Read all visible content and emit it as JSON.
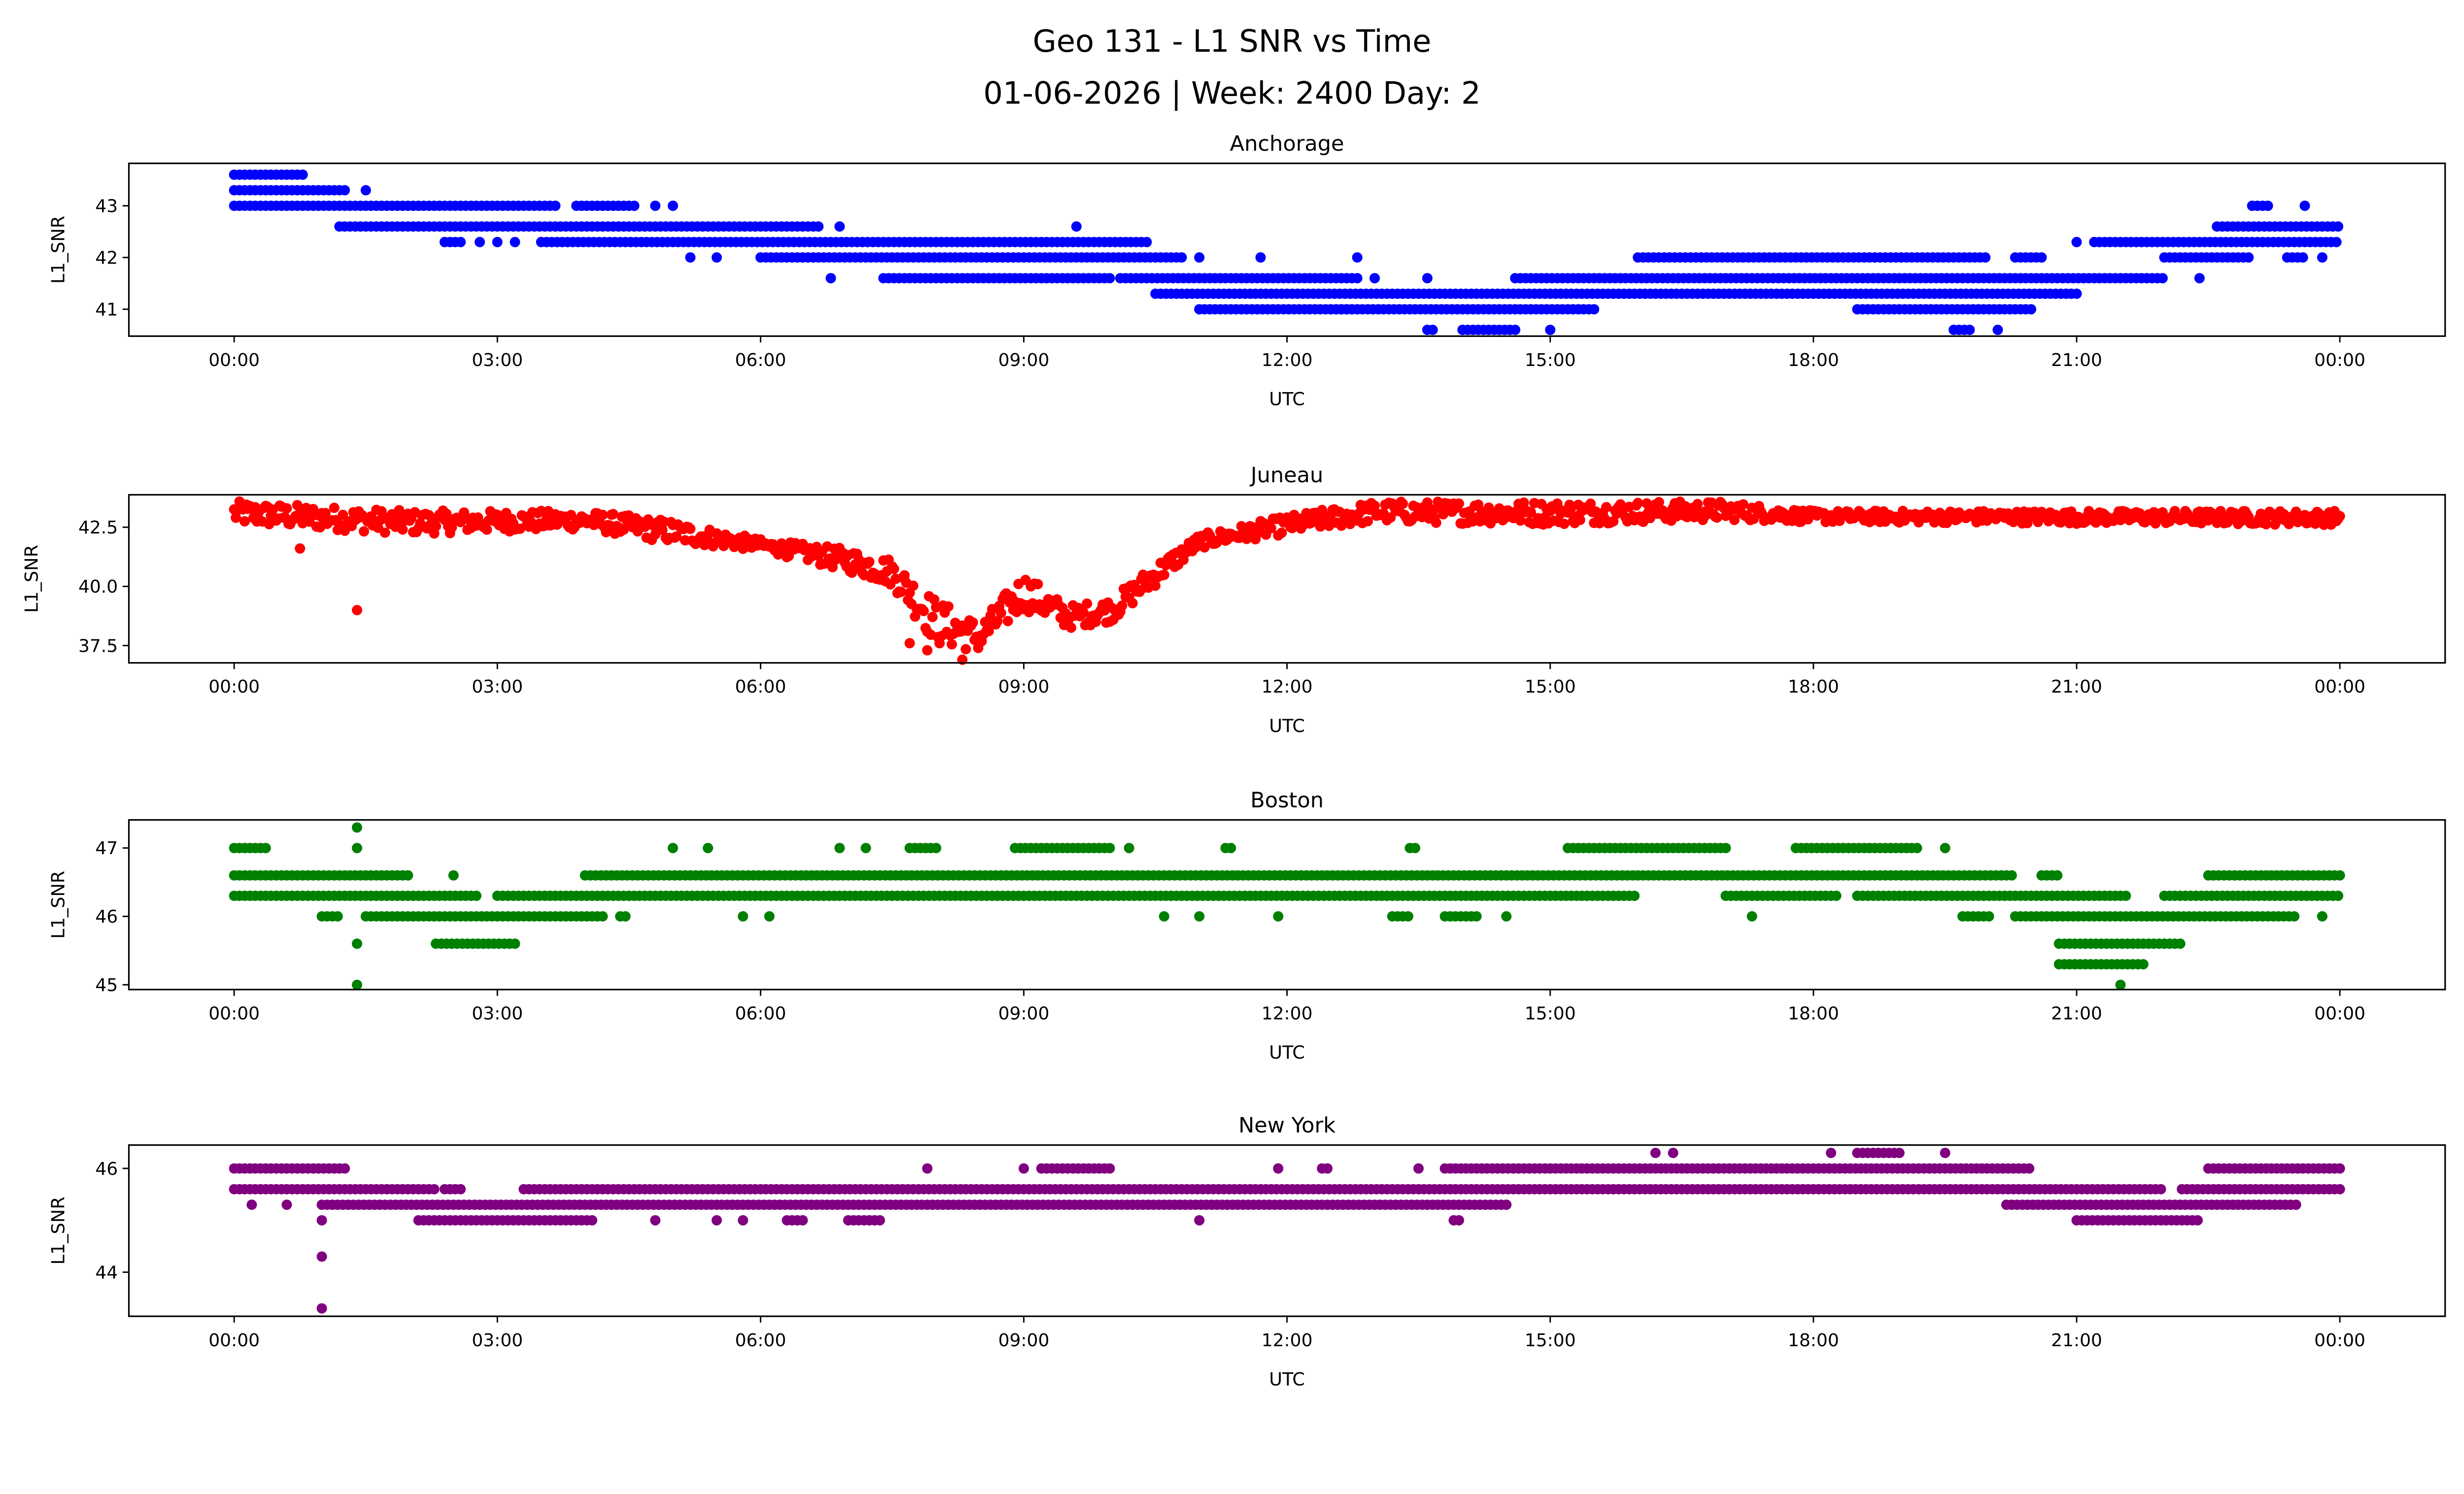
{
  "title_line1": "Geo 131 - L1 SNR vs Time",
  "title_line2": "01-06-2026 | Week: 2400 Day: 2",
  "chart_data": [
    {
      "type": "scatter",
      "title": "Anchorage",
      "xlabel": "UTC",
      "ylabel": "L1_SNR",
      "color": "#0000ff",
      "xlim_hours": [
        -1.2,
        25.2
      ],
      "ylim": [
        40.48,
        43.82
      ],
      "yticks": [
        41,
        42,
        43
      ],
      "xticks_hours": [
        0,
        3,
        6,
        9,
        12,
        15,
        18,
        21,
        24
      ],
      "xtick_labels": [
        "00:00",
        "03:00",
        "06:00",
        "09:00",
        "12:00",
        "15:00",
        "18:00",
        "21:00",
        "00:00"
      ],
      "runs": [
        [
          43.6,
          0.0,
          0.8
        ],
        [
          43.3,
          0.0,
          1.3
        ],
        [
          43.3,
          1.5,
          1.5
        ],
        [
          43.0,
          0.0,
          3.7
        ],
        [
          43.0,
          3.9,
          4.6
        ],
        [
          43.0,
          4.8,
          4.8
        ],
        [
          43.0,
          5.0,
          5.0
        ],
        [
          42.6,
          1.2,
          6.7
        ],
        [
          42.6,
          6.9,
          6.9
        ],
        [
          42.3,
          2.4,
          2.6
        ],
        [
          42.3,
          2.8,
          2.8
        ],
        [
          42.3,
          3.0,
          3.0
        ],
        [
          42.3,
          3.2,
          3.2
        ],
        [
          42.3,
          3.5,
          10.4
        ],
        [
          42.0,
          5.2,
          5.2
        ],
        [
          42.0,
          5.5,
          5.5
        ],
        [
          42.0,
          6.0,
          10.8
        ],
        [
          42.0,
          11.0,
          11.0
        ],
        [
          42.0,
          11.7,
          11.7
        ],
        [
          42.0,
          12.8,
          12.8
        ],
        [
          41.6,
          6.8,
          6.8
        ],
        [
          41.6,
          7.4,
          10.0
        ],
        [
          41.6,
          10.1,
          12.8
        ],
        [
          41.6,
          13.0,
          13.0
        ],
        [
          41.6,
          13.6,
          13.6
        ],
        [
          41.6,
          14.6,
          22.0
        ],
        [
          41.6,
          22.4,
          22.4
        ],
        [
          41.3,
          10.5,
          21.0
        ],
        [
          41.0,
          11.0,
          12.8
        ],
        [
          41.0,
          12.5,
          15.5
        ],
        [
          41.0,
          18.5,
          20.5
        ],
        [
          40.6,
          13.6,
          13.7
        ],
        [
          40.6,
          14.0,
          14.6
        ],
        [
          40.6,
          15.0,
          15.0
        ],
        [
          40.6,
          19.6,
          19.8
        ],
        [
          40.6,
          20.1,
          20.1
        ],
        [
          42.0,
          16.0,
          20.0
        ],
        [
          42.0,
          20.3,
          20.6
        ],
        [
          42.0,
          22.0,
          23.0
        ],
        [
          42.0,
          23.4,
          23.6
        ],
        [
          42.0,
          23.8,
          23.8
        ],
        [
          42.3,
          21.0,
          21.0
        ],
        [
          42.3,
          21.2,
          24.0
        ],
        [
          42.6,
          22.6,
          24.0
        ],
        [
          43.0,
          23.0,
          23.2
        ],
        [
          43.0,
          23.6,
          23.6
        ],
        [
          42.6,
          9.6,
          9.6
        ]
      ]
    },
    {
      "type": "scatter",
      "title": "Juneau",
      "xlabel": "UTC",
      "ylabel": "L1_SNR",
      "color": "#ff0000",
      "xlim_hours": [
        -1.2,
        25.2
      ],
      "ylim": [
        36.77,
        43.87
      ],
      "yticks": [
        37.5,
        40.0,
        42.5
      ],
      "ytick_labels": [
        "37.5",
        "40.0",
        "42.5"
      ],
      "xticks_hours": [
        0,
        3,
        6,
        9,
        12,
        15,
        18,
        21,
        24
      ],
      "xtick_labels": [
        "00:00",
        "03:00",
        "06:00",
        "09:00",
        "12:00",
        "15:00",
        "18:00",
        "21:00",
        "00:00"
      ],
      "envelope": [
        [
          0,
          42.6,
          43.6
        ],
        [
          2,
          42.2,
          43.2
        ],
        [
          4,
          42.4,
          43.2
        ],
        [
          5,
          41.8,
          42.8
        ],
        [
          6,
          41.5,
          42.0
        ],
        [
          7,
          40.6,
          41.6
        ],
        [
          7.5,
          40.0,
          41.2
        ],
        [
          8,
          37.5,
          39.5
        ],
        [
          8.5,
          37.2,
          38.5
        ],
        [
          9,
          39.0,
          40.6
        ],
        [
          9.5,
          38.2,
          39.2
        ],
        [
          10,
          38.5,
          39.5
        ],
        [
          10.5,
          40.0,
          41.0
        ],
        [
          11,
          41.6,
          42.2
        ],
        [
          12,
          42.2,
          43.0
        ],
        [
          13,
          42.7,
          43.6
        ],
        [
          15,
          42.6,
          43.6
        ],
        [
          17,
          42.8,
          43.6
        ],
        [
          18,
          42.7,
          43.2
        ],
        [
          24,
          42.6,
          43.2
        ]
      ],
      "outliers": [
        [
          0.75,
          41.6
        ],
        [
          1.4,
          39.0
        ],
        [
          7.7,
          37.6
        ],
        [
          7.9,
          37.3
        ],
        [
          8.3,
          36.9
        ]
      ]
    },
    {
      "type": "scatter",
      "title": "Boston",
      "xlabel": "UTC",
      "ylabel": "L1_SNR",
      "color": "#008000",
      "xlim_hours": [
        -1.2,
        25.2
      ],
      "ylim": [
        44.93,
        47.41
      ],
      "yticks": [
        45,
        46,
        47
      ],
      "xticks_hours": [
        0,
        3,
        6,
        9,
        12,
        15,
        18,
        21,
        24
      ],
      "xtick_labels": [
        "00:00",
        "03:00",
        "06:00",
        "09:00",
        "12:00",
        "15:00",
        "18:00",
        "21:00",
        "00:00"
      ],
      "runs": [
        [
          46.6,
          0.0,
          2.0
        ],
        [
          46.6,
          2.5,
          2.5
        ],
        [
          46.6,
          4.0,
          20.3
        ],
        [
          46.6,
          20.6,
          20.8
        ],
        [
          46.6,
          22.5,
          24.0
        ],
        [
          46.3,
          0.0,
          2.8
        ],
        [
          46.3,
          3.0,
          16.0
        ],
        [
          46.3,
          17.0,
          18.3
        ],
        [
          46.3,
          18.5,
          21.6
        ],
        [
          46.3,
          22.0,
          24.0
        ],
        [
          46.0,
          1.0,
          1.2
        ],
        [
          46.0,
          1.5,
          4.2
        ],
        [
          46.0,
          4.4,
          4.5
        ],
        [
          46.0,
          5.8,
          5.8
        ],
        [
          46.0,
          6.1,
          6.1
        ],
        [
          46.0,
          10.6,
          10.6
        ],
        [
          46.0,
          11.0,
          11.0
        ],
        [
          46.0,
          11.9,
          11.9
        ],
        [
          46.0,
          13.2,
          13.4
        ],
        [
          46.0,
          13.8,
          14.2
        ],
        [
          46.0,
          14.5,
          14.5
        ],
        [
          46.0,
          17.3,
          17.3
        ],
        [
          46.0,
          19.7,
          20.0
        ],
        [
          46.0,
          20.3,
          23.5
        ],
        [
          46.0,
          23.8,
          23.8
        ],
        [
          45.6,
          1.4,
          1.4
        ],
        [
          45.6,
          2.3,
          3.2
        ],
        [
          45.6,
          20.8,
          22.2
        ],
        [
          45.3,
          20.8,
          21.8
        ],
        [
          45.0,
          1.4,
          1.4
        ],
        [
          45.0,
          21.5,
          21.5
        ],
        [
          47.0,
          0.0,
          0.4
        ],
        [
          47.0,
          1.4,
          1.4
        ],
        [
          47.0,
          5.0,
          5.0
        ],
        [
          47.0,
          5.4,
          5.4
        ],
        [
          47.0,
          6.9,
          6.9
        ],
        [
          47.0,
          7.2,
          7.2
        ],
        [
          47.0,
          7.7,
          8.0
        ],
        [
          47.0,
          8.9,
          10.0
        ],
        [
          47.0,
          10.2,
          10.2
        ],
        [
          47.0,
          11.3,
          11.4
        ],
        [
          47.0,
          13.4,
          13.5
        ],
        [
          47.0,
          15.2,
          17.0
        ],
        [
          47.0,
          17.8,
          19.2
        ],
        [
          47.0,
          19.5,
          19.5
        ],
        [
          47.3,
          1.4,
          1.4
        ]
      ]
    },
    {
      "type": "scatter",
      "title": "New York",
      "xlabel": "UTC",
      "ylabel": "L1_SNR",
      "color": "#800080",
      "xlim_hours": [
        -1.2,
        25.2
      ],
      "ylim": [
        43.15,
        46.45
      ],
      "yticks": [
        44,
        46
      ],
      "xticks_hours": [
        0,
        3,
        6,
        9,
        12,
        15,
        18,
        21,
        24
      ],
      "xtick_labels": [
        "00:00",
        "03:00",
        "06:00",
        "09:00",
        "12:00",
        "15:00",
        "18:00",
        "21:00",
        "00:00"
      ],
      "runs": [
        [
          46.0,
          0.0,
          1.3
        ],
        [
          46.0,
          7.9,
          7.9
        ],
        [
          46.0,
          9.0,
          9.0
        ],
        [
          46.0,
          9.2,
          10.0
        ],
        [
          46.0,
          11.9,
          11.9
        ],
        [
          46.0,
          12.4,
          12.5
        ],
        [
          46.0,
          13.5,
          13.5
        ],
        [
          46.0,
          13.8,
          20.5
        ],
        [
          46.0,
          22.5,
          24.0
        ],
        [
          45.6,
          0.0,
          2.3
        ],
        [
          45.6,
          2.4,
          2.6
        ],
        [
          45.6,
          3.3,
          22.0
        ],
        [
          45.6,
          22.2,
          24.0
        ],
        [
          45.3,
          0.2,
          0.2
        ],
        [
          45.3,
          0.6,
          0.6
        ],
        [
          45.3,
          1.0,
          14.5
        ],
        [
          45.3,
          20.2,
          23.5
        ],
        [
          45.0,
          1.0,
          1.0
        ],
        [
          45.0,
          2.1,
          4.1
        ],
        [
          45.0,
          4.8,
          4.8
        ],
        [
          45.0,
          5.5,
          5.5
        ],
        [
          45.0,
          5.8,
          5.8
        ],
        [
          45.0,
          6.3,
          6.5
        ],
        [
          45.0,
          7.0,
          7.4
        ],
        [
          45.0,
          11.0,
          11.0
        ],
        [
          45.0,
          13.9,
          14.0
        ],
        [
          45.0,
          21.0,
          22.4
        ],
        [
          44.3,
          1.0,
          1.0
        ],
        [
          43.3,
          1.0,
          1.0
        ],
        [
          46.3,
          16.2,
          16.2
        ],
        [
          46.3,
          16.4,
          16.4
        ],
        [
          46.3,
          18.2,
          18.2
        ],
        [
          46.3,
          18.5,
          19.0
        ],
        [
          46.3,
          19.5,
          19.5
        ]
      ]
    }
  ]
}
